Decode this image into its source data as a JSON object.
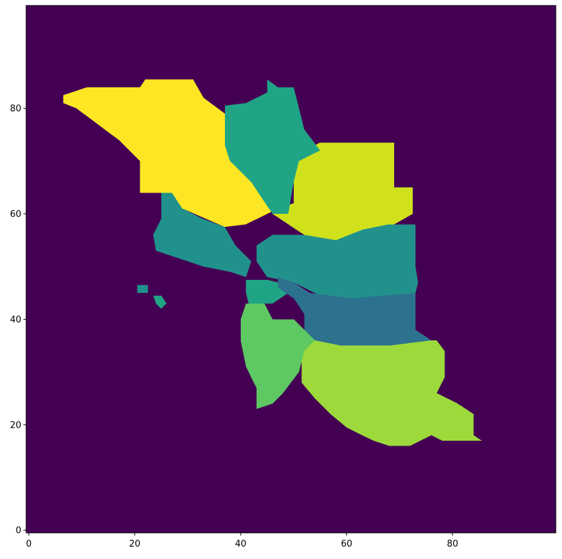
{
  "chart_data": {
    "type": "heatmap",
    "title": "",
    "xlabel": "",
    "ylabel": "",
    "grid": false,
    "legend": "none",
    "xlim": [
      -0.5,
      99.5
    ],
    "ylim": [
      -0.5,
      99.5
    ],
    "origin": "lower",
    "x_ticks": [
      0,
      20,
      40,
      60,
      80
    ],
    "x_tick_labels": [
      "0",
      "20",
      "40",
      "60",
      "80"
    ],
    "y_ticks": [
      0,
      20,
      40,
      60,
      80
    ],
    "y_tick_labels": [
      "0",
      "20",
      "40",
      "60",
      "80"
    ],
    "colormap": "viridis",
    "background": {
      "value": 0,
      "color": "#440154"
    },
    "regions": [
      {
        "value": 8,
        "color": "#fde725",
        "polygon": [
          [
            6.5,
            82.5
          ],
          [
            11,
            84
          ],
          [
            21,
            84
          ],
          [
            22,
            85.5
          ],
          [
            31,
            85.5
          ],
          [
            33,
            82
          ],
          [
            37,
            79
          ],
          [
            37,
            73
          ],
          [
            46,
            65
          ],
          [
            47,
            61
          ],
          [
            41,
            58
          ],
          [
            37,
            57.5
          ],
          [
            29,
            61
          ],
          [
            27,
            64
          ],
          [
            21,
            64
          ],
          [
            21,
            70
          ],
          [
            17,
            74
          ],
          [
            13,
            77
          ],
          [
            9,
            80
          ],
          [
            6.5,
            81
          ]
        ]
      },
      {
        "value": 7,
        "color": "#d0e11c",
        "polygon": [
          [
            51,
            70
          ],
          [
            52,
            72
          ],
          [
            55,
            73.5
          ],
          [
            69,
            73.5
          ],
          [
            69,
            65
          ],
          [
            72.5,
            65
          ],
          [
            72.5,
            60
          ],
          [
            69,
            58
          ],
          [
            63,
            57
          ],
          [
            58,
            55
          ],
          [
            52,
            56
          ],
          [
            46,
            60
          ],
          [
            47,
            61
          ],
          [
            50,
            62
          ],
          [
            50,
            67
          ]
        ]
      },
      {
        "value": 6,
        "color": "#9dd93b",
        "polygon": [
          [
            52,
            36
          ],
          [
            77,
            36
          ],
          [
            78.5,
            34
          ],
          [
            78.5,
            29
          ],
          [
            77,
            26
          ],
          [
            81,
            24
          ],
          [
            84,
            22
          ],
          [
            84,
            18
          ],
          [
            85.5,
            17
          ],
          [
            78,
            17
          ],
          [
            76,
            18
          ],
          [
            72,
            16
          ],
          [
            68,
            16
          ],
          [
            65,
            17
          ],
          [
            60,
            19.5
          ],
          [
            57,
            22
          ],
          [
            54,
            25
          ],
          [
            51.5,
            28
          ],
          [
            51.5,
            33
          ]
        ]
      },
      {
        "value": 5,
        "color": "#5ec962",
        "polygon": [
          [
            41,
            43
          ],
          [
            44.5,
            43
          ],
          [
            46,
            40
          ],
          [
            50,
            40
          ],
          [
            52,
            38
          ],
          [
            54,
            36
          ],
          [
            52,
            34
          ],
          [
            51,
            30
          ],
          [
            48,
            26
          ],
          [
            46,
            24
          ],
          [
            43,
            23
          ],
          [
            43,
            27
          ],
          [
            41,
            31
          ],
          [
            40,
            36
          ],
          [
            40,
            40
          ]
        ]
      },
      {
        "value": 4,
        "color": "#20a486",
        "polygon": [
          [
            37,
            80.5
          ],
          [
            41,
            81
          ],
          [
            45,
            83
          ],
          [
            45,
            85.5
          ],
          [
            47,
            84
          ],
          [
            50,
            84
          ],
          [
            52,
            76
          ],
          [
            55,
            72
          ],
          [
            51,
            70
          ],
          [
            50,
            66
          ],
          [
            49,
            60
          ],
          [
            46,
            60
          ],
          [
            42,
            66
          ],
          [
            38,
            70
          ],
          [
            37,
            73
          ]
        ]
      },
      {
        "value": 4,
        "color": "#20a486",
        "polygon": [
          [
            41,
            47.5
          ],
          [
            45,
            47.5
          ],
          [
            47,
            47
          ],
          [
            49,
            45
          ],
          [
            46,
            43
          ],
          [
            41.5,
            43
          ],
          [
            41,
            45
          ]
        ]
      },
      {
        "value": 3,
        "color": "#21918c",
        "polygon": [
          [
            25,
            64
          ],
          [
            27,
            64
          ],
          [
            29,
            61
          ],
          [
            33,
            59
          ],
          [
            37,
            57.5
          ],
          [
            39,
            54
          ],
          [
            42,
            51
          ],
          [
            41,
            48
          ],
          [
            38,
            49
          ],
          [
            33,
            50
          ],
          [
            30,
            51
          ],
          [
            24,
            53
          ],
          [
            23.5,
            56
          ],
          [
            25,
            59
          ]
        ]
      },
      {
        "value": 3,
        "color": "#21918c",
        "polygon": [
          [
            46,
            56
          ],
          [
            52,
            56
          ],
          [
            58,
            55
          ],
          [
            63,
            57
          ],
          [
            68,
            58
          ],
          [
            73,
            58
          ],
          [
            73,
            50
          ],
          [
            73.5,
            47
          ],
          [
            73,
            45
          ],
          [
            61,
            44
          ],
          [
            56,
            44
          ],
          [
            50,
            47
          ],
          [
            45,
            48
          ],
          [
            43,
            51
          ],
          [
            43,
            54
          ]
        ]
      },
      {
        "value": 2,
        "color": "#2c728e",
        "polygon": [
          [
            47,
            48
          ],
          [
            50,
            47
          ],
          [
            53,
            45
          ],
          [
            61,
            44
          ],
          [
            73,
            45
          ],
          [
            73,
            38
          ],
          [
            76,
            36
          ],
          [
            68,
            35
          ],
          [
            59,
            35
          ],
          [
            54,
            36
          ],
          [
            52,
            38
          ],
          [
            52,
            41
          ],
          [
            50,
            44
          ],
          [
            47,
            46
          ]
        ]
      },
      {
        "value": 3,
        "color": "#21918c",
        "polygon": [
          [
            20.5,
            46.5
          ],
          [
            22.5,
            46.5
          ],
          [
            22.5,
            45
          ],
          [
            20.5,
            45
          ]
        ]
      },
      {
        "value": 4,
        "color": "#20a486",
        "polygon": [
          [
            23.5,
            44.5
          ],
          [
            25,
            44.5
          ],
          [
            26,
            43
          ],
          [
            25,
            42
          ],
          [
            24,
            43
          ]
        ]
      }
    ]
  }
}
